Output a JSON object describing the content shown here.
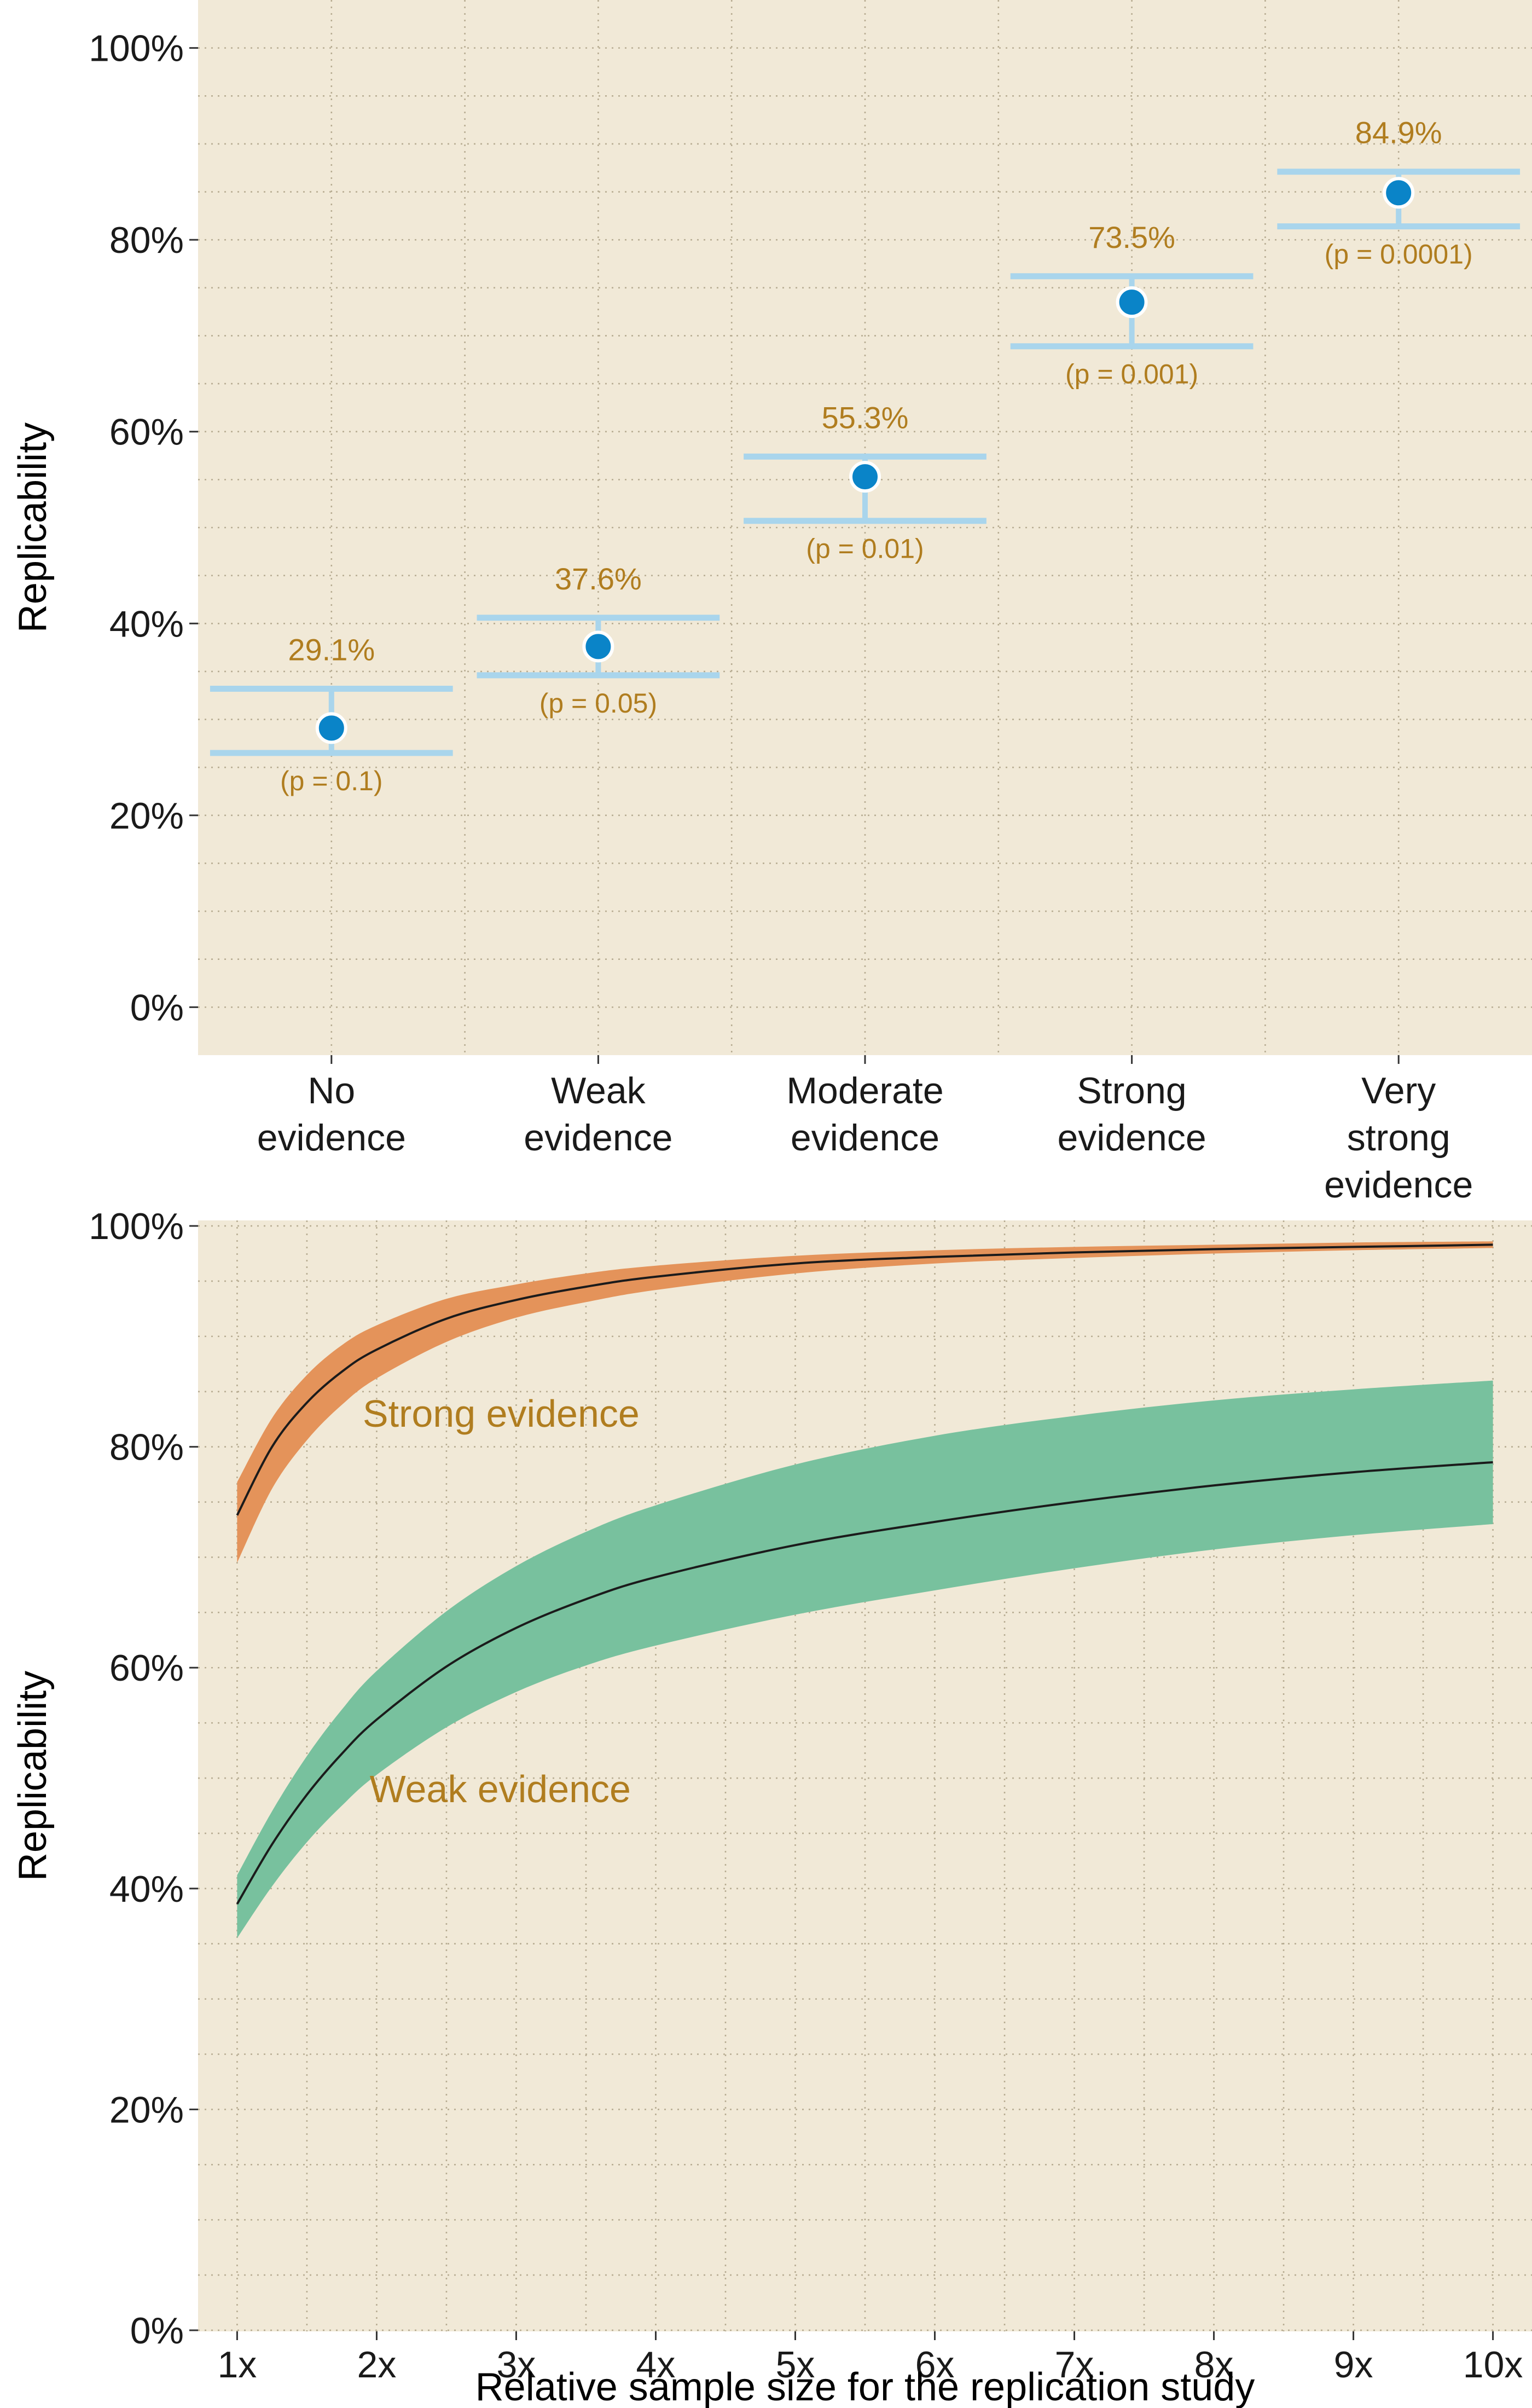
{
  "colors": {
    "panel_bg": "#f1e9d7",
    "annotation": "#b07d1f",
    "point_fill": "#0a84c8",
    "point_stroke": "#ffffff",
    "errorbar": "#a9d5ec",
    "strong_band": "#e4935a",
    "weak_band": "#78c19e",
    "line": "#1b1b1b"
  },
  "chart_data": [
    {
      "type": "scatter",
      "ylabel": "Replicability",
      "xlabel": "",
      "ylim": [
        -5,
        105
      ],
      "y_ticks": [
        0,
        20,
        40,
        60,
        80,
        100
      ],
      "y_tick_labels": [
        "0%",
        "20%",
        "40%",
        "60%",
        "80%",
        "100%"
      ],
      "grid": true,
      "categories": [
        [
          "No",
          "evidence"
        ],
        [
          "Weak",
          "evidence"
        ],
        [
          "Moderate",
          "evidence"
        ],
        [
          "Strong",
          "evidence"
        ],
        [
          "Very",
          "strong",
          "evidence"
        ]
      ],
      "values": [
        29.1,
        37.6,
        55.3,
        73.5,
        84.9
      ],
      "value_labels": [
        "29.1%",
        "37.6%",
        "55.3%",
        "73.5%",
        "84.9%"
      ],
      "p_labels": [
        "(p = 0.1)",
        "(p = 0.05)",
        "(p = 0.01)",
        "(p = 0.001)",
        "(p = 0.0001)"
      ],
      "interval_low": [
        26.5,
        34.6,
        50.7,
        68.9,
        81.4
      ],
      "interval_high": [
        33.2,
        40.6,
        57.4,
        76.2,
        87.1
      ]
    },
    {
      "type": "area",
      "ylabel": "Replicability",
      "xlabel": "Relative sample size for the replication study",
      "xlim": [
        0.72,
        10.28
      ],
      "ylim": [
        -0.1,
        100.5
      ],
      "x_ticks": [
        1,
        2,
        3,
        4,
        5,
        6,
        7,
        8,
        9,
        10
      ],
      "x_tick_labels": [
        "1x",
        "2x",
        "3x",
        "4x",
        "5x",
        "6x",
        "7x",
        "8x",
        "9x",
        "10x"
      ],
      "y_ticks": [
        0,
        20,
        40,
        60,
        80,
        100
      ],
      "y_tick_labels": [
        "0%",
        "20%",
        "40%",
        "60%",
        "80%",
        "100%"
      ],
      "grid": true,
      "x": [
        1,
        1.25,
        1.5,
        1.75,
        2,
        2.5,
        3,
        3.5,
        4,
        5,
        6,
        7,
        8,
        9,
        10
      ],
      "series": [
        {
          "name": "Strong evidence",
          "label_at": [
            1.9,
            83
          ],
          "values": [
            73.8,
            80.0,
            84.0,
            86.8,
            88.8,
            91.6,
            93.3,
            94.5,
            95.4,
            96.6,
            97.2,
            97.6,
            97.9,
            98.1,
            98.3
          ],
          "lower": [
            69.5,
            76.2,
            80.6,
            83.8,
            86.2,
            89.5,
            91.7,
            93.1,
            94.2,
            95.7,
            96.6,
            97.1,
            97.5,
            97.8,
            98.0
          ],
          "upper": [
            76.8,
            82.6,
            86.5,
            89.2,
            91.0,
            93.4,
            94.7,
            95.7,
            96.4,
            97.3,
            97.8,
            98.1,
            98.3,
            98.5,
            98.6
          ]
        },
        {
          "name": "Weak evidence",
          "label_at": [
            1.95,
            49
          ],
          "values": [
            38.6,
            44.0,
            48.5,
            52.2,
            55.3,
            60.1,
            63.6,
            66.2,
            68.2,
            71.1,
            73.2,
            75.0,
            76.5,
            77.7,
            78.6
          ],
          "lower": [
            35.5,
            40.2,
            44.2,
            47.5,
            50.3,
            54.6,
            57.8,
            60.2,
            62.0,
            64.8,
            67.0,
            69.0,
            70.7,
            72.0,
            73.0
          ],
          "upper": [
            41.2,
            47.0,
            52.0,
            56.2,
            59.7,
            65.1,
            69.2,
            72.3,
            74.7,
            78.4,
            81.0,
            82.8,
            84.2,
            85.2,
            86.0
          ]
        }
      ]
    }
  ]
}
